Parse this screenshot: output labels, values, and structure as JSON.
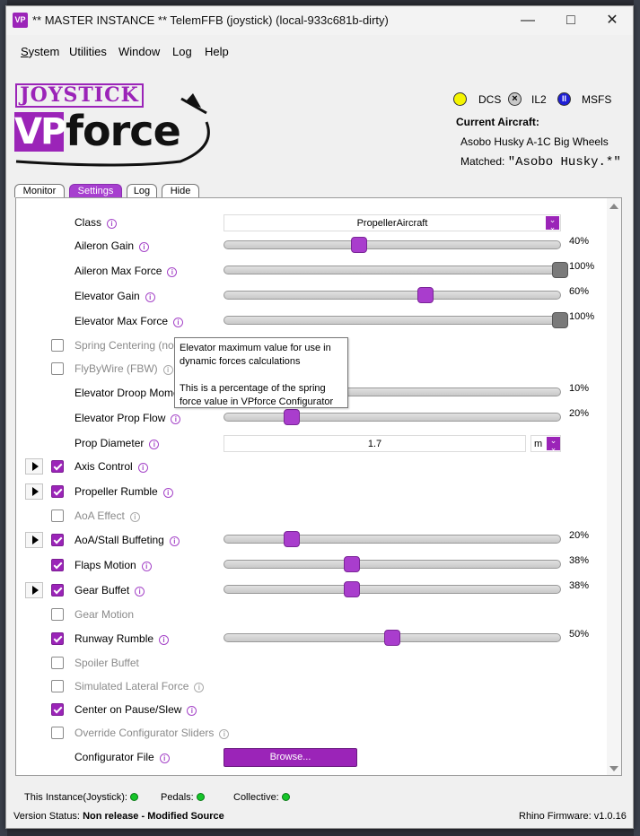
{
  "window": {
    "app_icon_text": "VP",
    "title": "** MASTER INSTANCE ** TelemFFB (joystick) (local-933c681b-dirty)"
  },
  "menu": [
    "System",
    "Utilities",
    "Window",
    "Log",
    "Help"
  ],
  "logo": {
    "top": "JOYSTICK",
    "vp": "VP",
    "force": "force"
  },
  "sims": [
    {
      "name": "DCS",
      "color": "#f4f400",
      "status": "active"
    },
    {
      "name": "IL2",
      "color": "#c8c8c8",
      "status": "disabled"
    },
    {
      "name": "MSFS",
      "color": "#1f1fd6",
      "status": "paused"
    }
  ],
  "aircraft": {
    "title": "Current Aircraft:",
    "name": "Asobo Husky A-1C Big Wheels",
    "matched_label": "Matched:",
    "matched_value": "\"Asobo Husky.*\""
  },
  "tabs": [
    "Monitor",
    "Settings",
    "Log",
    "Hide"
  ],
  "active_tab": "Settings",
  "settings": {
    "class_label": "Class",
    "class_value": "PropellerAircraft",
    "aileron_gain": {
      "label": "Aileron Gain",
      "value": 0.4,
      "text": "40%"
    },
    "aileron_max_force": {
      "label": "Aileron Max Force",
      "value": 1.0,
      "text": "100%"
    },
    "elevator_gain": {
      "label": "Elevator Gain",
      "value": 0.6,
      "text": "60%"
    },
    "elevator_max_force": {
      "label": "Elevator Max Force",
      "value": 1.0,
      "text": "100%"
    },
    "spring_centering": {
      "label": "Spring Centering (not",
      "checked": false
    },
    "flybywire": {
      "label": "FlyByWire (FBW)",
      "checked": false
    },
    "elevator_droop": {
      "label": "Elevator Droop Momer",
      "value": 0.1,
      "text": "10%"
    },
    "elevator_prop_flow": {
      "label": "Elevator Prop Flow",
      "value": 0.2,
      "text": "20%"
    },
    "prop_diameter": {
      "label": "Prop Diameter",
      "value": "1.7",
      "unit": "m"
    },
    "axis_control": {
      "label": "Axis Control",
      "checked": true
    },
    "propeller_rumble": {
      "label": "Propeller Rumble",
      "checked": true
    },
    "aoa_effect": {
      "label": "AoA Effect",
      "checked": false
    },
    "aoa_stall": {
      "label": "AoA/Stall Buffeting",
      "checked": true,
      "value": 0.2,
      "text": "20%"
    },
    "flaps_motion": {
      "label": "Flaps Motion",
      "checked": true,
      "value": 0.38,
      "text": "38%"
    },
    "gear_buffet": {
      "label": "Gear Buffet",
      "checked": true,
      "value": 0.38,
      "text": "38%"
    },
    "gear_motion": {
      "label": "Gear Motion",
      "checked": false
    },
    "runway_rumble": {
      "label": "Runway Rumble",
      "checked": true,
      "value": 0.5,
      "text": "50%"
    },
    "spoiler_buffet": {
      "label": "Spoiler Buffet",
      "checked": false
    },
    "simulated_lateral": {
      "label": "Simulated Lateral Force",
      "checked": false
    },
    "center_pause": {
      "label": "Center on Pause/Slew",
      "checked": true
    },
    "override_config": {
      "label": "Override Configurator Sliders",
      "checked": false
    },
    "configurator_file": {
      "label": "Configurator File",
      "button": "Browse..."
    }
  },
  "tooltip": {
    "line1": "Elevator maximum value for use in dynamic forces calculations",
    "line2": "This is a percentage of the spring force value in VPforce Configurator"
  },
  "status": {
    "instance": "This Instance(Joystick):",
    "pedals": "Pedals:",
    "collective": "Collective:",
    "version_label": "Version Status:",
    "version_value": "Non release - Modified Source",
    "firmware": "Rhino Firmware: v1.0.16"
  },
  "colors": {
    "accent": "#9b24b8",
    "led_ok": "#16c52a"
  }
}
